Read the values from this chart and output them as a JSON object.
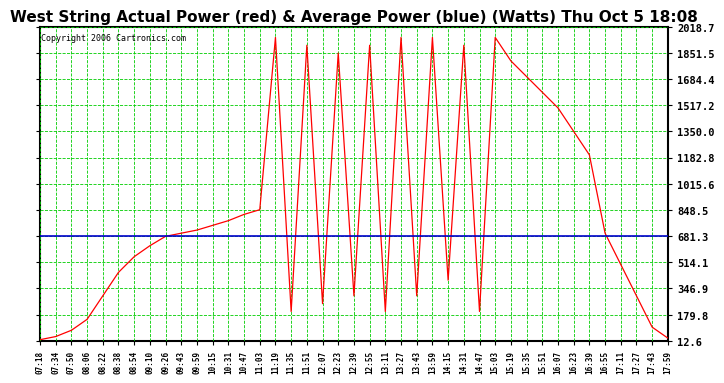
{
  "title": "West String Actual Power (red) & Average Power (blue) (Watts) Thu Oct 5 18:08",
  "copyright": "Copyright 2006 Cartronics.com",
  "yticks": [
    12.6,
    179.8,
    346.9,
    514.1,
    681.3,
    848.5,
    1015.6,
    1182.8,
    1350.0,
    1517.2,
    1684.4,
    1851.5,
    2018.7
  ],
  "ymin": 12.6,
  "ymax": 2018.7,
  "average_power": 681.3,
  "avg_color": "#0000cc",
  "actual_color": "#ff0000",
  "grid_color": "#00cc00",
  "bg_color": "#ffffff",
  "plot_bg": "#ffffff",
  "title_fontsize": 11,
  "xtick_labels": [
    "07:18",
    "07:34",
    "07:50",
    "08:06",
    "08:22",
    "08:38",
    "08:54",
    "09:10",
    "09:26",
    "09:43",
    "09:59",
    "10:15",
    "10:31",
    "10:47",
    "11:03",
    "11:19",
    "11:35",
    "11:51",
    "12:07",
    "12:23",
    "12:39",
    "12:55",
    "13:11",
    "13:27",
    "13:43",
    "13:59",
    "14:15",
    "14:31",
    "14:47",
    "15:03",
    "15:19",
    "15:35",
    "15:51",
    "16:07",
    "16:23",
    "16:39",
    "16:55",
    "17:11",
    "17:27",
    "17:43",
    "17:59"
  ],
  "base_values": [
    20,
    40,
    80,
    150,
    300,
    450,
    550,
    620,
    680,
    700,
    720,
    750,
    780,
    820,
    850,
    1950,
    200,
    1900,
    250,
    1850,
    300,
    1900,
    200,
    1950,
    300,
    1950,
    400,
    1900,
    200,
    1950,
    1800,
    1700,
    1600,
    1500,
    1350,
    1200,
    700,
    500,
    300,
    100,
    30
  ]
}
